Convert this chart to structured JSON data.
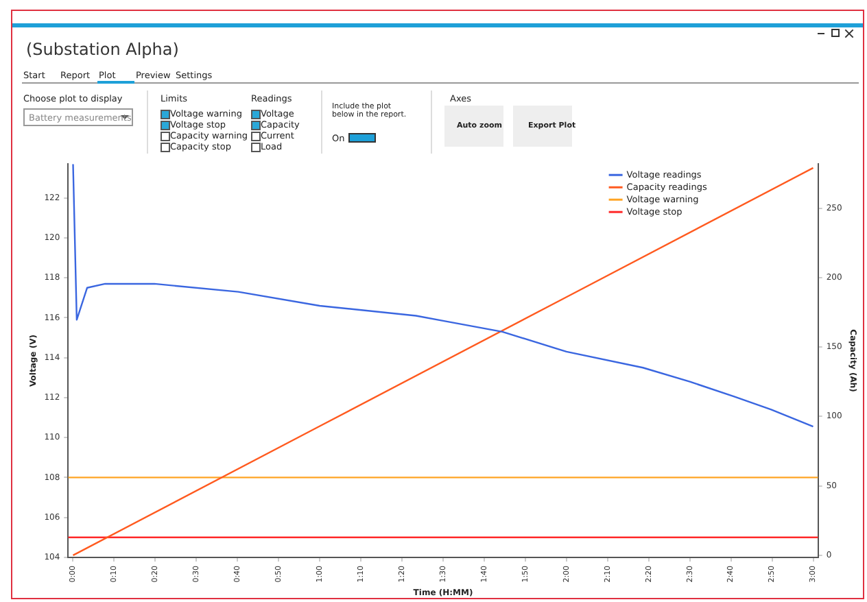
{
  "chart_data": {
    "type": "line",
    "title": "(Substation Alpha)",
    "annotations": [
      "Start",
      "Report",
      "Plot",
      "Preview",
      "Settings",
      "Choose plot to display",
      "Battery measurements",
      "Limits",
      "Voltage warning",
      "Voltage stop",
      "Capacity warning",
      "Capacity stop",
      "Readings",
      "Voltage",
      "Capacity",
      "Current",
      "Load",
      "Include the plot below in the report.",
      "On",
      "Axes",
      "Auto zoom",
      "Export Plot"
    ],
    "xlabel": "Time (H:MM)",
    "ylabel": "Voltage (V)",
    "y2label": "Capacity (Ah)",
    "xlim": [
      -0.02,
      3.02
    ],
    "ylim": [
      104,
      123.7
    ],
    "y2lim": [
      -1.5,
      281.8
    ],
    "xticks": [
      {
        "value": 0,
        "label": "0:00"
      },
      {
        "value": 0.1667,
        "label": "0:10"
      },
      {
        "value": 0.3333,
        "label": "0:20"
      },
      {
        "value": 0.5,
        "label": "0:30"
      },
      {
        "value": 0.6667,
        "label": "0:40"
      },
      {
        "value": 0.8333,
        "label": "0:50"
      },
      {
        "value": 1,
        "label": "1:00"
      },
      {
        "value": 1.1667,
        "label": "1:10"
      },
      {
        "value": 1.3333,
        "label": "1:20"
      },
      {
        "value": 1.5,
        "label": "1:30"
      },
      {
        "value": 1.6667,
        "label": "1:40"
      },
      {
        "value": 1.8333,
        "label": "1:50"
      },
      {
        "value": 2,
        "label": "2:00"
      },
      {
        "value": 2.1667,
        "label": "2:10"
      },
      {
        "value": 2.3333,
        "label": "2:20"
      },
      {
        "value": 2.5,
        "label": "2:30"
      },
      {
        "value": 2.6667,
        "label": "2:40"
      },
      {
        "value": 2.8333,
        "label": "2:50"
      },
      {
        "value": 3,
        "label": "3:00"
      }
    ],
    "yticks": [
      104,
      106,
      108,
      110,
      112,
      114,
      116,
      118,
      120,
      122
    ],
    "y2ticks": [
      0,
      50,
      100,
      150,
      200,
      250
    ],
    "series": [
      {
        "name": "Voltage readings",
        "color": "#3a66e0",
        "axis": "y",
        "x": [
          0,
          0.015,
          0.057,
          0.13,
          0.33,
          0.67,
          1,
          1.39,
          1.5,
          1.74,
          2,
          2.31,
          2.5,
          2.68,
          2.83,
          3
        ],
        "values": [
          123.7,
          115.9,
          117.5,
          117.7,
          117.7,
          117.3,
          116.6,
          116.1,
          115.85,
          115.3,
          114.3,
          113.5,
          112.8,
          112.05,
          111.4,
          110.55
        ]
      },
      {
        "name": "Capacity readings",
        "color": "#ff5a1f",
        "axis": "y2",
        "x": [
          0,
          1,
          2,
          3
        ],
        "values": [
          0,
          93,
          186,
          279
        ]
      }
    ],
    "ref_lines": [
      {
        "axis": "y",
        "value": 108,
        "label": "Voltage warning",
        "color": "#ffa424"
      },
      {
        "axis": "y",
        "value": 105,
        "label": "Voltage stop",
        "color": "#ff2a2a"
      }
    ],
    "legend": "top right",
    "grid": false,
    "marker": "none",
    "line_style": "solid"
  }
}
